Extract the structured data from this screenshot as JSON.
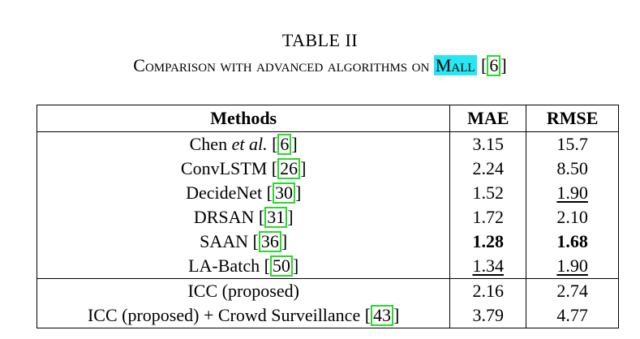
{
  "table_label": "TABLE II",
  "caption": {
    "before": "Comparison with advanced algorithms on ",
    "highlight": "Mall",
    "open": " [",
    "ref": "6",
    "close": "]"
  },
  "headers": [
    "Methods",
    "MAE",
    "RMSE"
  ],
  "rows": [
    {
      "pre": "Chen ",
      "em": "et al.",
      "post": " [",
      "ref": "6",
      "end": "]",
      "mae": "3.15",
      "rmse": "15.7",
      "mae_style": "",
      "rmse_style": ""
    },
    {
      "pre": "ConvLSTM [",
      "em": "",
      "post": "",
      "ref": "26",
      "end": "]",
      "mae": "2.24",
      "rmse": "8.50",
      "mae_style": "",
      "rmse_style": ""
    },
    {
      "pre": "DecideNet [",
      "em": "",
      "post": "",
      "ref": "30",
      "end": "]",
      "mae": "1.52",
      "rmse": "1.90",
      "mae_style": "",
      "rmse_style": "underline"
    },
    {
      "pre": "DRSAN [",
      "em": "",
      "post": "",
      "ref": "31",
      "end": "]",
      "mae": "1.72",
      "rmse": "2.10",
      "mae_style": "",
      "rmse_style": ""
    },
    {
      "pre": "SAAN [",
      "em": "",
      "post": "",
      "ref": "36",
      "end": "]",
      "mae": "1.28",
      "rmse": "1.68",
      "mae_style": "bold",
      "rmse_style": "bold"
    },
    {
      "pre": "LA-Batch [",
      "em": "",
      "post": "",
      "ref": "50",
      "end": "]",
      "mae": "1.34",
      "rmse": "1.90",
      "mae_style": "underline",
      "rmse_style": "underline"
    },
    {
      "pre": "ICC (proposed)",
      "em": "",
      "post": "",
      "ref": "",
      "end": "",
      "mae": "2.16",
      "rmse": "2.74",
      "mae_style": "",
      "rmse_style": ""
    },
    {
      "pre": "ICC (proposed) + Crowd Surveillance [",
      "em": "",
      "post": "",
      "ref": "43",
      "end": "]",
      "mae": "3.79",
      "rmse": "4.77",
      "mae_style": "",
      "rmse_style": ""
    }
  ],
  "colors": {
    "highlight": "#28e6f2",
    "ref_box": "#2ad82a"
  }
}
